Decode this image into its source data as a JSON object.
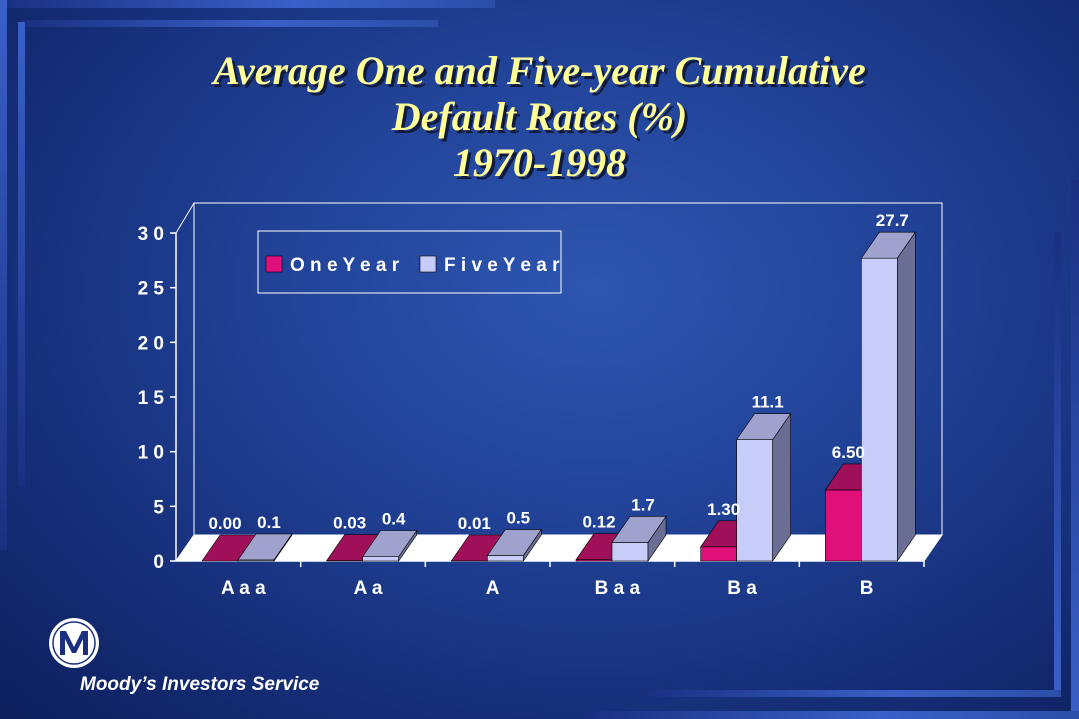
{
  "title": {
    "line1": "Average One and Five-year Cumulative",
    "line2": "Default Rates (%)",
    "line3": "1970-1998"
  },
  "company": "Moody’s Investors Service",
  "colors": {
    "one_year": "#e0107a",
    "five_year": "#c8ccf8",
    "title": "#ffff99"
  },
  "chart_data": {
    "type": "bar",
    "categories": [
      "Aaa",
      "Aa",
      "A",
      "Baa",
      "Ba",
      "B"
    ],
    "category_labels": [
      "A a a",
      "A a",
      "A",
      "B a a",
      "B a",
      "B"
    ],
    "series": [
      {
        "name": "One Year",
        "legend_label": "O n e  Y e a r",
        "values": [
          0.0,
          0.03,
          0.01,
          0.12,
          1.3,
          6.5
        ],
        "labels": [
          "0.00",
          "0.03",
          "0.01",
          "0.12",
          "1.30",
          "6.50"
        ]
      },
      {
        "name": "Five Year",
        "legend_label": "F i v e  Y e a r",
        "values": [
          0.1,
          0.4,
          0.5,
          1.7,
          11.1,
          27.7
        ],
        "labels": [
          "0.1",
          "0.4",
          "0.5",
          "1.7",
          "11.1",
          "27.7"
        ]
      }
    ],
    "ylim": [
      0,
      30
    ],
    "yticks": [
      0,
      5,
      10,
      15,
      20,
      25,
      30
    ],
    "ytick_labels": [
      "0",
      "5",
      "1 0",
      "1 5",
      "2 0",
      "2 5",
      "3 0"
    ],
    "legend_position": "top-left"
  }
}
